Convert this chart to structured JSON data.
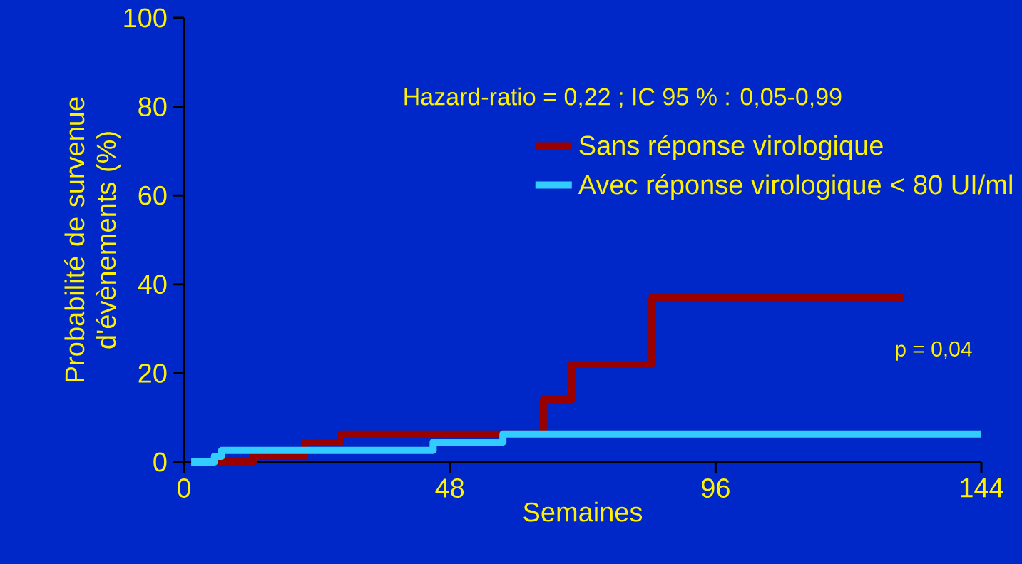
{
  "chart_data": {
    "type": "step",
    "xlabel": "Semaines",
    "ylabel": "Probabilité de survenue d'évènements (%)",
    "xlim": [
      0,
      144
    ],
    "xticks": [
      0,
      48,
      96,
      144
    ],
    "ylim": [
      0,
      100
    ],
    "yticks": [
      0,
      20,
      40,
      60,
      80,
      100
    ],
    "series": [
      {
        "name": "Sans réponse virologique",
        "color": "#990000",
        "x": [
          6,
          12.5,
          21.8,
          28.3,
          64.9,
          70,
          84.5,
          130
        ],
        "values": [
          0,
          1.3,
          4.5,
          6.3,
          14,
          22,
          37,
          37
        ]
      },
      {
        "name": "Avec réponse virologique < 80 UI/ml",
        "color": "#33ccff",
        "x": [
          1.3,
          5.5,
          6.8,
          45,
          57.6,
          144
        ],
        "values": [
          0,
          1.3,
          2.6,
          4.5,
          6.3,
          6.3
        ]
      }
    ],
    "annotations": [
      "Hazard-ratio = 0,22 ; IC 95 % : 0,05-0,99",
      "p = 0,04"
    ],
    "legend": "top right",
    "grid": false,
    "marker": "none",
    "line_style": "solid"
  }
}
